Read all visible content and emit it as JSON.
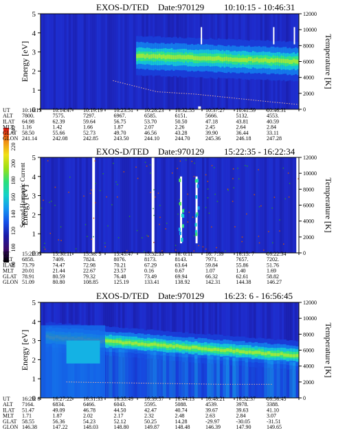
{
  "colorbar": {
    "label": "Second Harmonic Current",
    "ticks": [
      "80",
      "100",
      "120",
      "140",
      "160",
      "180",
      "200",
      "220",
      "240"
    ],
    "colors": [
      "#000000",
      "#3a0a6a",
      "#1a1aa8",
      "#1450e8",
      "#1496f0",
      "#14d2c8",
      "#2ae07a",
      "#9ae014",
      "#f0e014",
      "#f08c14",
      "#e01414"
    ]
  },
  "panels": [
    {
      "title": "EXOS-D/TED",
      "date": "Date:970129",
      "time_range": "10:10:15 - 10:46:31",
      "ylabel_left": "Energy [eV]",
      "ylabel_right": "Temperature [K]",
      "yticks_left": [
        "0",
        "1",
        "2",
        "3",
        "4",
        "5"
      ],
      "yticks_right": [
        "0",
        "2000",
        "4000",
        "6000",
        "8000",
        "10000",
        "12000"
      ],
      "orbit_labels": [
        "UT",
        "ALT",
        "ILAT",
        "MLT",
        "GLAT",
        "GLON"
      ],
      "orbit_columns": [
        [
          "10:10:15",
          "7800.",
          "64.98",
          "1.16",
          "58.50",
          "241.14"
        ],
        [
          "10:14:47",
          "7575.",
          "62.39",
          "1.42",
          "55.66",
          "242.08"
        ],
        [
          "10:19:19",
          "7297.",
          "59.64",
          "1.66",
          "52.73",
          "242.85"
        ],
        [
          "10:23:51",
          "6967.",
          "56.75",
          "1.87",
          "49.70",
          "243.50"
        ],
        [
          "10:28:23",
          "6585.",
          "53.70",
          "2.07",
          "46.56",
          "244.10"
        ],
        [
          "10:32:55",
          "6151.",
          "50.50",
          "2.26",
          "43.28",
          "244.70"
        ],
        [
          "10:37:27",
          "5666.",
          "47.18",
          "2.45",
          "39.90",
          "245.36"
        ],
        [
          "10:41:59",
          "5132.",
          "43.81",
          "2.64",
          "36.44",
          "246.18"
        ],
        [
          "10:46:31",
          "4553.",
          "40.59",
          "2.84",
          "33.11",
          "247.28"
        ]
      ]
    },
    {
      "title": "EXOS-D/TED",
      "date": "Date:970129",
      "time_range": "15:22:35 - 16:22:34",
      "ylabel_left": "Energy [eV]",
      "ylabel_right": "Temperature [K]",
      "yticks_left": [
        "0",
        "1",
        "2",
        "3",
        "4",
        "5"
      ],
      "yticks_right": [
        "0",
        "2000",
        "4000",
        "6000",
        "8000",
        "10000",
        "12000"
      ],
      "orbit_labels": [
        "UT",
        "ALT",
        "ILAT",
        "MLT",
        "GLAT",
        "GLON"
      ],
      "orbit_columns": [
        [
          "15:22:35",
          "6858.",
          "73.79",
          "20.01",
          "78.91",
          "51.09"
        ],
        [
          "15:30:11",
          "7409.",
          "74.47",
          "21.44",
          "80.59",
          "80.80"
        ],
        [
          "15:38: 5",
          "7824.",
          "72.98",
          "22.67",
          "79.32",
          "108.85"
        ],
        [
          "15:45:47",
          "8076.",
          "70.21",
          "23.57",
          "76.48",
          "125.19"
        ],
        [
          "15:52:35",
          "8173.",
          "67.29",
          "0.16",
          "73.49",
          "133.41"
        ],
        [
          "16: 0:11",
          "8143.",
          "63.64",
          "0.67",
          "69.94",
          "138.92"
        ],
        [
          "16: 7:39",
          "7971.",
          "59.84",
          "1.07",
          "66.32",
          "142.31"
        ],
        [
          "16:15: 7",
          "7657.",
          "55.86",
          "1.40",
          "62.61",
          "144.38"
        ],
        [
          "16:22:34",
          "7202.",
          "51.76",
          "1.69",
          "58.82",
          "146.27"
        ]
      ]
    },
    {
      "title": "EXOS-D/TED",
      "date": "Date:970129",
      "time_range": "16:23: 6 - 16:56:45",
      "ylabel_left": "Energy [eV]",
      "ylabel_right": "Temperature [K]",
      "yticks_left": [
        "0",
        "1",
        "2",
        "3",
        "4",
        "5"
      ],
      "yticks_right": [
        "0",
        "2000",
        "4000",
        "6000",
        "8000",
        "10000",
        "12000"
      ],
      "orbit_labels": [
        "UT",
        "ALT",
        "ILAT",
        "MLT",
        "GLAT",
        "GLON"
      ],
      "orbit_columns": [
        [
          "16:23: 6",
          "7164.",
          "51.47",
          "1.71",
          "58.55",
          "146.38"
        ],
        [
          "16:27:22",
          "6834.",
          "49.09",
          "1.87",
          "56.36",
          "147.22"
        ],
        [
          "16:31:33",
          "6466.",
          "46.78",
          "2.02",
          "54.23",
          "148.03"
        ],
        [
          "16:35:49",
          "6043.",
          "44.50",
          "2.17",
          "52.12",
          "148.80"
        ],
        [
          "16:39:57",
          "5595.",
          "42.47",
          "2.32",
          "50.25",
          "149.87"
        ],
        [
          "16:44:13",
          "5088.",
          "40.74",
          "2.48",
          "14.28",
          "148.48"
        ],
        [
          "16:48:21",
          "4539.",
          "39.67",
          "2.63",
          "-29.97",
          "146.39"
        ],
        [
          "16:52:37",
          "3978.",
          "39.63",
          "2.84",
          "-30.05",
          "147.90"
        ],
        [
          "16:56:45",
          "3388.",
          "41.10",
          "3.07",
          "-31.51",
          "149.65"
        ]
      ]
    }
  ],
  "chart_data": [
    {
      "type": "heatmap",
      "title": "EXOS-D/TED Date:970129 10:10:15 - 10:46:31",
      "xlabel": "UT",
      "ylabel": "Energy [eV]",
      "ylabel_right": "Temperature [K]",
      "ylim": [
        0,
        5
      ],
      "ylim_right": [
        0,
        12000
      ],
      "x": [
        "10:10:15",
        "10:14:47",
        "10:19:19",
        "10:23:51",
        "10:28:23",
        "10:32:55",
        "10:37:27",
        "10:41:59",
        "10:46:31"
      ],
      "colorbar_range": [
        80,
        240
      ],
      "band": {
        "x_start_frac": 0.37,
        "center_energy": 2.3,
        "half_width": 0.45,
        "peak_energy_start": 2.8,
        "peak_energy_end": 2.5
      },
      "temperature_trace": {
        "x_frac": [
          0.28,
          0.45,
          0.6,
          0.75,
          0.9,
          1.0
        ],
        "temperature_K": [
          3600,
          2200,
          1900,
          1400,
          900,
          600
        ]
      },
      "grid": false
    },
    {
      "type": "heatmap",
      "title": "EXOS-D/TED Date:970129 15:22:35 - 16:22:34",
      "xlabel": "UT",
      "ylabel": "Energy [eV]",
      "ylabel_right": "Temperature [K]",
      "ylim": [
        0,
        5
      ],
      "ylim_right": [
        0,
        12000
      ],
      "x": [
        "15:22:35",
        "15:30:11",
        "15:38: 5",
        "15:45:47",
        "15:52:35",
        "16: 0:11",
        "16: 7:39",
        "16:15: 7",
        "16:22:34"
      ],
      "colorbar_range": [
        80,
        240
      ],
      "data_gaps_x_frac": [
        0.2,
        0.43,
        0.99
      ],
      "bursts_x_frac": [
        0.54,
        0.6
      ],
      "grid": false
    },
    {
      "type": "heatmap",
      "title": "EXOS-D/TED Date:970129 16:23: 6 - 16:56:45",
      "xlabel": "UT",
      "ylabel": "Energy [eV]",
      "ylabel_right": "Temperature [K]",
      "ylim": [
        0,
        5
      ],
      "ylim_right": [
        0,
        12000
      ],
      "x": [
        "16:23: 6",
        "16:27:22",
        "16:31:33",
        "16:35:49",
        "16:39:57",
        "16:44:13",
        "16:48:21",
        "16:52:37",
        "16:56:45"
      ],
      "colorbar_range": [
        80,
        240
      ],
      "band": {
        "x_start_frac": 0.02,
        "center_energy": 2.3,
        "half_width": 0.4,
        "peak_energy_start": 3.2,
        "peak_energy_end": 2.2
      },
      "temperature_trace": {
        "x_frac": [
          0.1,
          0.3,
          0.5,
          0.7,
          0.9
        ],
        "temperature_K": [
          2000,
          1900,
          1800,
          1700,
          1700
        ]
      },
      "grid": false
    }
  ]
}
